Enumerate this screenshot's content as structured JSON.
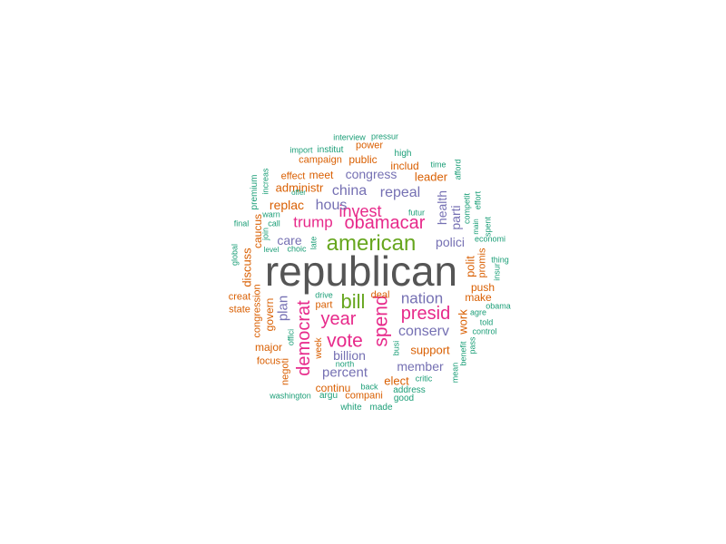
{
  "colors": {
    "g": "#1b9e77",
    "o": "#d95f02",
    "p": "#7570b3",
    "m": "#e7298a",
    "l": "#66a61e",
    "k": "#555555"
  },
  "words": [
    {
      "text": "republican",
      "color": "k"
    },
    {
      "text": "american",
      "color": "l"
    },
    {
      "text": "obamacar",
      "color": "m"
    },
    {
      "text": "trump",
      "color": "m"
    },
    {
      "text": "invest",
      "color": "m"
    },
    {
      "text": "hous",
      "color": "p"
    },
    {
      "text": "bill",
      "color": "l"
    },
    {
      "text": "year",
      "color": "m"
    },
    {
      "text": "vote",
      "color": "m"
    },
    {
      "text": "presid",
      "color": "m"
    },
    {
      "text": "spend",
      "color": "m"
    },
    {
      "text": "democrat",
      "color": "m"
    },
    {
      "text": "nation",
      "color": "p"
    },
    {
      "text": "conserv",
      "color": "p"
    },
    {
      "text": "china",
      "color": "p"
    },
    {
      "text": "repeal",
      "color": "p"
    },
    {
      "text": "congress",
      "color": "p"
    },
    {
      "text": "plan",
      "color": "p"
    },
    {
      "text": "care",
      "color": "p"
    },
    {
      "text": "polici",
      "color": "p"
    },
    {
      "text": "health",
      "color": "p"
    },
    {
      "text": "parti",
      "color": "p"
    },
    {
      "text": "percent",
      "color": "p"
    },
    {
      "text": "billion",
      "color": "p"
    },
    {
      "text": "member",
      "color": "p"
    },
    {
      "text": "replac",
      "color": "o"
    },
    {
      "text": "administr",
      "color": "o"
    },
    {
      "text": "leader",
      "color": "o"
    },
    {
      "text": "includ",
      "color": "o"
    },
    {
      "text": "public",
      "color": "o"
    },
    {
      "text": "power",
      "color": "o"
    },
    {
      "text": "campaign",
      "color": "o"
    },
    {
      "text": "effect",
      "color": "o"
    },
    {
      "text": "meet",
      "color": "o"
    },
    {
      "text": "caucus",
      "color": "o"
    },
    {
      "text": "discuss",
      "color": "o"
    },
    {
      "text": "govern",
      "color": "o"
    },
    {
      "text": "congression",
      "color": "o"
    },
    {
      "text": "major",
      "color": "o"
    },
    {
      "text": "focus",
      "color": "o"
    },
    {
      "text": "negoti",
      "color": "o"
    },
    {
      "text": "creat",
      "color": "o"
    },
    {
      "text": "state",
      "color": "o"
    },
    {
      "text": "part",
      "color": "o"
    },
    {
      "text": "deal",
      "color": "o"
    },
    {
      "text": "support",
      "color": "o"
    },
    {
      "text": "work",
      "color": "o"
    },
    {
      "text": "make",
      "color": "o"
    },
    {
      "text": "push",
      "color": "o"
    },
    {
      "text": "promis",
      "color": "o"
    },
    {
      "text": "polit",
      "color": "o"
    },
    {
      "text": "elect",
      "color": "o"
    },
    {
      "text": "continu",
      "color": "o"
    },
    {
      "text": "compani",
      "color": "o"
    },
    {
      "text": "week",
      "color": "o"
    },
    {
      "text": "interview",
      "color": "g"
    },
    {
      "text": "pressur",
      "color": "g"
    },
    {
      "text": "import",
      "color": "g"
    },
    {
      "text": "institut",
      "color": "g"
    },
    {
      "text": "high",
      "color": "g"
    },
    {
      "text": "time",
      "color": "g"
    },
    {
      "text": "afford",
      "color": "g"
    },
    {
      "text": "premium",
      "color": "g"
    },
    {
      "text": "increas",
      "color": "g"
    },
    {
      "text": "offer",
      "color": "g"
    },
    {
      "text": "futur",
      "color": "g"
    },
    {
      "text": "competit",
      "color": "g"
    },
    {
      "text": "effort",
      "color": "g"
    },
    {
      "text": "main",
      "color": "g"
    },
    {
      "text": "spent",
      "color": "g"
    },
    {
      "text": "economi",
      "color": "g"
    },
    {
      "text": "warn",
      "color": "g"
    },
    {
      "text": "call",
      "color": "g"
    },
    {
      "text": "final",
      "color": "g"
    },
    {
      "text": "join",
      "color": "g"
    },
    {
      "text": "level",
      "color": "g"
    },
    {
      "text": "choic",
      "color": "g"
    },
    {
      "text": "late",
      "color": "g"
    },
    {
      "text": "global",
      "color": "g"
    },
    {
      "text": "thing",
      "color": "g"
    },
    {
      "text": "insur",
      "color": "g"
    },
    {
      "text": "drive",
      "color": "g"
    },
    {
      "text": "obama",
      "color": "g"
    },
    {
      "text": "agre",
      "color": "g"
    },
    {
      "text": "told",
      "color": "g"
    },
    {
      "text": "control",
      "color": "g"
    },
    {
      "text": "offici",
      "color": "g"
    },
    {
      "text": "busi",
      "color": "g"
    },
    {
      "text": "north",
      "color": "g"
    },
    {
      "text": "benefit",
      "color": "g"
    },
    {
      "text": "pass",
      "color": "g"
    },
    {
      "text": "mean",
      "color": "g"
    },
    {
      "text": "critic",
      "color": "g"
    },
    {
      "text": "address",
      "color": "g"
    },
    {
      "text": "good",
      "color": "g"
    },
    {
      "text": "back",
      "color": "g"
    },
    {
      "text": "argu",
      "color": "g"
    },
    {
      "text": "washington",
      "color": "g"
    },
    {
      "text": "white",
      "color": "g"
    },
    {
      "text": "made",
      "color": "g"
    }
  ]
}
